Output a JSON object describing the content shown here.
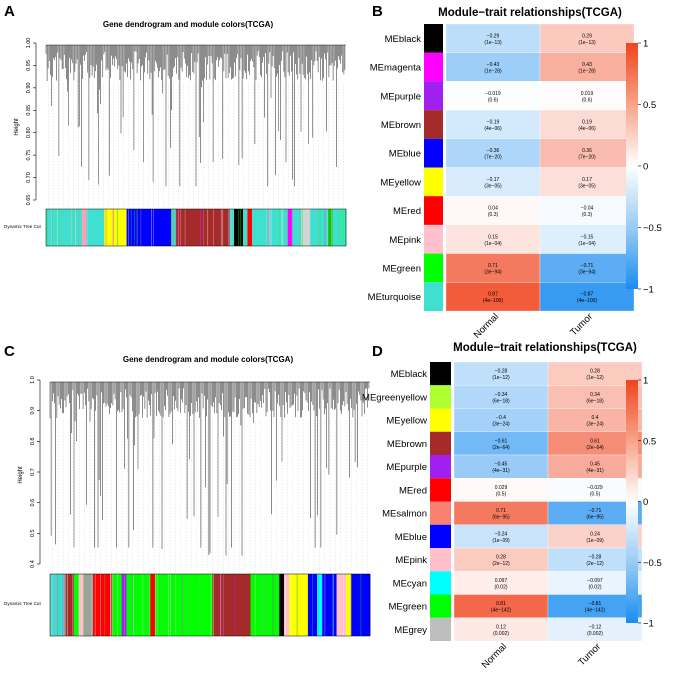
{
  "panels": {
    "A": {
      "letter": "A",
      "title": "Gene dendrogram and module colors(TCGA)",
      "ylabel": "Height",
      "yticks": [
        "1.00",
        "0.95",
        "0.90",
        "0.85",
        "0.80",
        "0.75",
        "0.70",
        "0.65"
      ],
      "track_label": "Dynamic Tree Cut"
    },
    "C": {
      "letter": "C",
      "title": "Gene dendrogram and module colors(TCGA)",
      "ylabel": "Height",
      "yticks": [
        "1.0",
        "0.9",
        "0.8",
        "0.7",
        "0.6",
        "0.5",
        "0.4"
      ],
      "track_label": "Dynamic Tree Cut"
    },
    "B": {
      "letter": "B"
    },
    "D": {
      "letter": "D"
    }
  },
  "chart_data": [
    {
      "id": "A",
      "type": "dendrogram",
      "title": "Gene dendrogram and module colors(TCGA)",
      "ylabel": "Height",
      "ylim": [
        0.65,
        1.0
      ],
      "color_track": [
        {
          "c": "#40e0d0",
          "w": 8
        },
        {
          "c": "#ffa0b4",
          "w": 1
        },
        {
          "c": "#40e0d0",
          "w": 4
        },
        {
          "c": "#ffff00",
          "w": 5
        },
        {
          "c": "#0000ff",
          "w": 10
        },
        {
          "c": "#40e0d0",
          "w": 1
        },
        {
          "c": "#a52a2a",
          "w": 12
        },
        {
          "c": "#40e0d0",
          "w": 1
        },
        {
          "c": "#000000",
          "w": 2
        },
        {
          "c": "#40e0d0",
          "w": 1
        },
        {
          "c": "#ff0000",
          "w": 1
        },
        {
          "c": "#40e0d0",
          "w": 8
        },
        {
          "c": "#ff00ff",
          "w": 1
        },
        {
          "c": "#40e0d0",
          "w": 2
        },
        {
          "c": "#d3d3d3",
          "w": 2
        },
        {
          "c": "#40e0d0",
          "w": 4
        },
        {
          "c": "#00cc00",
          "w": 1
        },
        {
          "c": "#40e0d0",
          "w": 3
        }
      ]
    },
    {
      "id": "B",
      "type": "heatmap",
      "title": "Module−trait relationships(TCGA)",
      "columns": [
        "Normal",
        "Tumor"
      ],
      "colorbar_ticks": [
        "1",
        "0.5",
        "0",
        "−0.5",
        "−1"
      ],
      "rows": [
        {
          "name": "MEblack",
          "color": "#000000",
          "r": [
            "−0.29",
            "0.29"
          ],
          "p": [
            "(1e−13)",
            "(1e−13)"
          ],
          "v": [
            -0.29,
            0.29
          ]
        },
        {
          "name": "MEmagenta",
          "color": "#ff00ff",
          "r": [
            "−0.43",
            "0.43"
          ],
          "p": [
            "(1e−28)",
            "(1e−28)"
          ],
          "v": [
            -0.43,
            0.43
          ]
        },
        {
          "name": "MEpurple",
          "color": "#a020f0",
          "r": [
            "−0.019",
            "0.019"
          ],
          "p": [
            "(0.6)",
            "(0.6)"
          ],
          "v": [
            -0.019,
            0.019
          ]
        },
        {
          "name": "MEbrown",
          "color": "#a52a2a",
          "r": [
            "−0.19",
            "0.19"
          ],
          "p": [
            "(4e−06)",
            "(4e−06)"
          ],
          "v": [
            -0.19,
            0.19
          ]
        },
        {
          "name": "MEblue",
          "color": "#0000ff",
          "r": [
            "−0.36",
            "0.36"
          ],
          "p": [
            "(7e−20)",
            "(7e−20)"
          ],
          "v": [
            -0.36,
            0.36
          ]
        },
        {
          "name": "MEyellow",
          "color": "#ffff00",
          "r": [
            "−0.17",
            "0.17"
          ],
          "p": [
            "(3e−05)",
            "(3e−05)"
          ],
          "v": [
            -0.17,
            0.17
          ]
        },
        {
          "name": "MEred",
          "color": "#ff0000",
          "r": [
            "0.04",
            "−0.04"
          ],
          "p": [
            "(0.3)",
            "(0.3)"
          ],
          "v": [
            0.04,
            -0.04
          ]
        },
        {
          "name": "MEpink",
          "color": "#ffc0cb",
          "r": [
            "0.15",
            "−0.15"
          ],
          "p": [
            "(1e−04)",
            "(1e−04)"
          ],
          "v": [
            0.15,
            -0.15
          ]
        },
        {
          "name": "MEgreen",
          "color": "#00ff00",
          "r": [
            "0.71",
            "−0.71"
          ],
          "p": [
            "(3e−94)",
            "(3e−94)"
          ],
          "v": [
            0.71,
            -0.71
          ]
        },
        {
          "name": "MEturquoise",
          "color": "#40e0d0",
          "r": [
            "0.87",
            "−0.87"
          ],
          "p": [
            "(4e−100)",
            "(4e−100)"
          ],
          "v": [
            0.87,
            -0.87
          ]
        }
      ]
    },
    {
      "id": "C",
      "type": "dendrogram",
      "title": "Gene dendrogram and module colors(TCGA)",
      "ylabel": "Height",
      "ylim": [
        0.4,
        1.0
      ],
      "color_track": [
        {
          "c": "#40e0d0",
          "w": 3
        },
        {
          "c": "#a52a2a",
          "w": 2
        },
        {
          "c": "#00ff00",
          "w": 1
        },
        {
          "c": "#ffc0cb",
          "w": 1
        },
        {
          "c": "#a0a0a0",
          "w": 2
        },
        {
          "c": "#ff0000",
          "w": 4
        },
        {
          "c": "#00ff00",
          "w": 2
        },
        {
          "c": "#a020f0",
          "w": 1
        },
        {
          "c": "#00ff00",
          "w": 5
        },
        {
          "c": "#ff0000",
          "w": 1
        },
        {
          "c": "#00ff00",
          "w": 12
        },
        {
          "c": "#a52a2a",
          "w": 8
        },
        {
          "c": "#00ff00",
          "w": 6
        },
        {
          "c": "#000000",
          "w": 1
        },
        {
          "c": "#ffc0cb",
          "w": 1
        },
        {
          "c": "#ffff00",
          "w": 4
        },
        {
          "c": "#0000ff",
          "w": 2
        },
        {
          "c": "#00ffff",
          "w": 1
        },
        {
          "c": "#0000ff",
          "w": 3
        },
        {
          "c": "#ffc0cb",
          "w": 2
        },
        {
          "c": "#ffff00",
          "w": 1
        },
        {
          "c": "#0000ff",
          "w": 4
        }
      ]
    },
    {
      "id": "D",
      "type": "heatmap",
      "title": "Module−trait relationships(TCGA)",
      "columns": [
        "Normal",
        "Tumor"
      ],
      "colorbar_ticks": [
        "1",
        "0.5",
        "0",
        "−0.5",
        "−1"
      ],
      "rows": [
        {
          "name": "MEblack",
          "color": "#000000",
          "r": [
            "−0.28",
            "0.28"
          ],
          "p": [
            "(1e−12)",
            "(1e−12)"
          ],
          "v": [
            -0.28,
            0.28
          ]
        },
        {
          "name": "MEgreenyellow",
          "color": "#adff2f",
          "r": [
            "−0.34",
            "0.34"
          ],
          "p": [
            "(6e−18)",
            "(6e−18)"
          ],
          "v": [
            -0.34,
            0.34
          ]
        },
        {
          "name": "MEyellow",
          "color": "#ffff00",
          "r": [
            "−0.4",
            "0.4"
          ],
          "p": [
            "(3e−24)",
            "(3e−24)"
          ],
          "v": [
            -0.4,
            0.4
          ]
        },
        {
          "name": "MEbrown",
          "color": "#a52a2a",
          "r": [
            "−0.61",
            "0.61"
          ],
          "p": [
            "(2e−64)",
            "(2e−64)"
          ],
          "v": [
            -0.61,
            0.61
          ]
        },
        {
          "name": "MEpurple",
          "color": "#a020f0",
          "r": [
            "−0.45",
            "0.45"
          ],
          "p": [
            "(4e−31)",
            "(4e−31)"
          ],
          "v": [
            -0.45,
            0.45
          ]
        },
        {
          "name": "MEred",
          "color": "#ff0000",
          "r": [
            "0.029",
            "−0.029"
          ],
          "p": [
            "(0.5)",
            "(0.5)"
          ],
          "v": [
            0.029,
            -0.029
          ]
        },
        {
          "name": "MEsalmon",
          "color": "#fa8072",
          "r": [
            "0.71",
            "−0.71"
          ],
          "p": [
            "(6e−95)",
            "(6e−95)"
          ],
          "v": [
            0.71,
            -0.71
          ]
        },
        {
          "name": "MEblue",
          "color": "#0000ff",
          "r": [
            "−0.24",
            "0.24"
          ],
          "p": [
            "(1e−09)",
            "(1e−09)"
          ],
          "v": [
            -0.24,
            0.24
          ]
        },
        {
          "name": "MEpink",
          "color": "#ffc0cb",
          "r": [
            "0.28",
            "−0.28"
          ],
          "p": [
            "(2e−12)",
            "(2e−12)"
          ],
          "v": [
            0.28,
            -0.28
          ]
        },
        {
          "name": "MEcyan",
          "color": "#00ffff",
          "r": [
            "0.097",
            "−0.097"
          ],
          "p": [
            "(0.02)",
            "(0.02)"
          ],
          "v": [
            0.097,
            -0.097
          ]
        },
        {
          "name": "MEgreen",
          "color": "#00ff00",
          "r": [
            "0.81",
            "−0.81"
          ],
          "p": [
            "(4e−142)",
            "(4e−142)"
          ],
          "v": [
            0.81,
            -0.81
          ]
        },
        {
          "name": "MEgrey",
          "color": "#bebebe",
          "r": [
            "0.12",
            "−0.12"
          ],
          "p": [
            "(0.002)",
            "(0.002)"
          ],
          "v": [
            0.12,
            -0.12
          ]
        }
      ]
    }
  ]
}
